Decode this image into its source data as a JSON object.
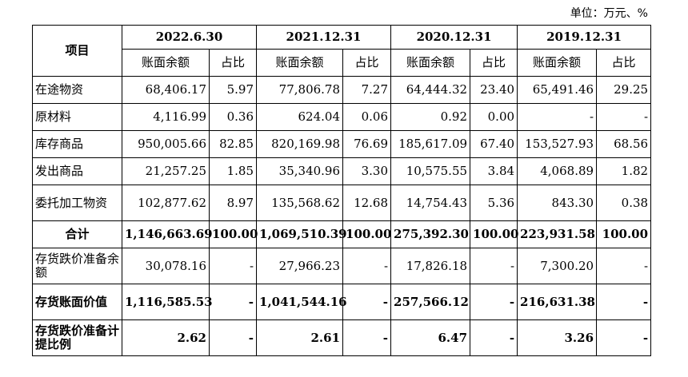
{
  "unit_label": "单位：万元、%",
  "header": {
    "item": "项目",
    "periods": [
      "2022.6.30",
      "2021.12.31",
      "2020.12.31",
      "2019.12.31"
    ],
    "balance": "账面余额",
    "ratio": "占比"
  },
  "rows": [
    {
      "label": "在途物资",
      "v": [
        "68,406.17",
        "5.97",
        "77,806.78",
        "7.27",
        "64,444.32",
        "23.40",
        "65,491.46",
        "29.25"
      ]
    },
    {
      "label": "原材料",
      "v": [
        "4,116.99",
        "0.36",
        "624.04",
        "0.06",
        "0.92",
        "0.00",
        "-",
        "-"
      ]
    },
    {
      "label": "库存商品",
      "v": [
        "950,005.66",
        "82.85",
        "820,169.98",
        "76.69",
        "185,617.09",
        "67.40",
        "153,527.93",
        "68.56"
      ]
    },
    {
      "label": "发出商品",
      "v": [
        "21,257.25",
        "1.85",
        "35,340.96",
        "3.30",
        "10,575.55",
        "3.84",
        "4,068.89",
        "1.82"
      ]
    },
    {
      "label": "委托加工物资",
      "v": [
        "102,877.62",
        "8.97",
        "135,568.62",
        "12.68",
        "14,754.43",
        "5.36",
        "843.30",
        "0.38"
      ]
    },
    {
      "label": "合计",
      "v": [
        "1,146,663.69",
        "100.00",
        "1,069,510.39",
        "100.00",
        "275,392.30",
        "100.00",
        "223,931.58",
        "100.00"
      ]
    },
    {
      "label": "存货跌价准备余额",
      "v": [
        "30,078.16",
        "-",
        "27,966.23",
        "-",
        "17,826.18",
        "-",
        "7,300.20",
        "-"
      ]
    },
    {
      "label": "存货账面价值",
      "v": [
        "1,116,585.53",
        "-",
        "1,041,544.16",
        "-",
        "257,566.12",
        "-",
        "216,631.38",
        "-"
      ]
    },
    {
      "label": "存货跌价准备计提比例",
      "v": [
        "2.62",
        "-",
        "2.61",
        "-",
        "6.47",
        "-",
        "3.26",
        "-"
      ]
    }
  ]
}
